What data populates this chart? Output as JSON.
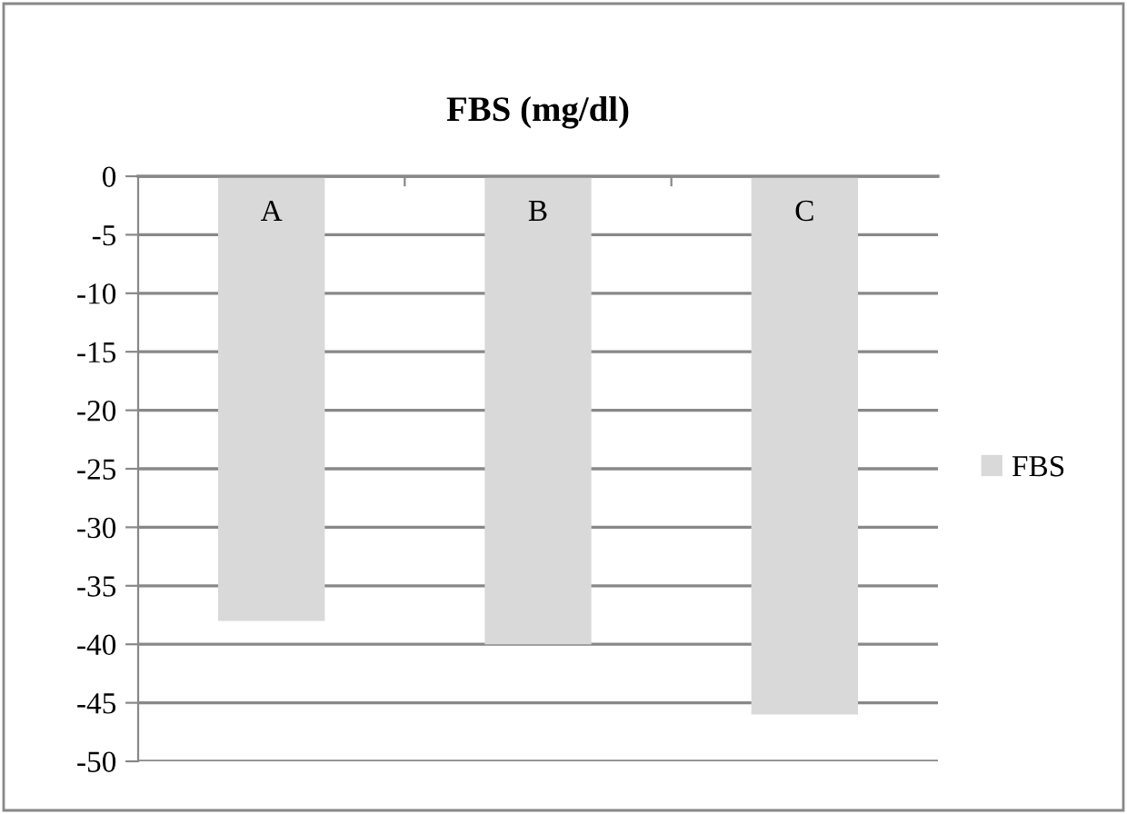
{
  "chart_data": {
    "type": "bar",
    "title": "FBS (mg/dl)",
    "categories": [
      "A",
      "B",
      "C"
    ],
    "series": [
      {
        "name": "FBS",
        "color": "#d9d9d9",
        "values": [
          -38,
          -40,
          -46
        ]
      }
    ],
    "ylim": [
      -50,
      0
    ],
    "yticks": [
      -50,
      -45,
      -40,
      -35,
      -30,
      -25,
      -20,
      -15,
      -10,
      -5,
      0
    ],
    "grid": "y",
    "legend": "right"
  }
}
